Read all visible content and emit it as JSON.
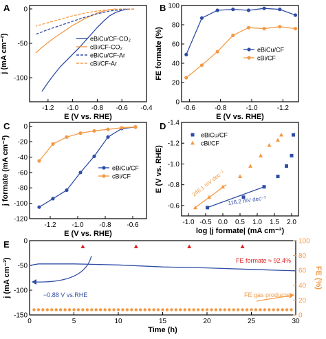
{
  "colors": {
    "ebicu": "#2F4DA5",
    "cbi": "#F39A45",
    "fe_marker": "#E02020",
    "axis": "#000000"
  },
  "chart_data": [
    {
      "panel": "A",
      "type": "line",
      "xlabel": "E (V vs. RHE)",
      "ylabel": "j (mA cm⁻²)",
      "xlim": [
        -1.35,
        -0.4
      ],
      "ylim": [
        -135,
        5
      ],
      "x_reversed": true,
      "xticks": [
        "-1.2",
        "-1.0",
        "-0.8",
        "-0.6",
        "-0.4"
      ],
      "yticks": [
        "0",
        "-50",
        "-100"
      ],
      "legend_position": "right",
      "series": [
        {
          "name": "eBiCu/CF-CO₂",
          "style": "solid",
          "color": "#2F4DA5",
          "x": [
            -0.55,
            -0.6,
            -0.65,
            -0.7,
            -0.75,
            -0.8,
            -0.85,
            -0.9,
            -0.95,
            -1.0,
            -1.05,
            -1.1,
            -1.15,
            -1.2,
            -1.25
          ],
          "y": [
            0,
            -2,
            -5,
            -10,
            -18,
            -27,
            -37,
            -47,
            -57,
            -66,
            -75,
            -84,
            -95,
            -107,
            -120
          ]
        },
        {
          "name": "cBi/CF-CO₂",
          "style": "solid",
          "color": "#F39A45",
          "x": [
            -0.65,
            -0.7,
            -0.75,
            -0.8,
            -0.85,
            -0.9,
            -0.95,
            -1.0,
            -1.05,
            -1.1,
            -1.15,
            -1.2,
            -1.25,
            -1.3
          ],
          "y": [
            0,
            -1,
            -3,
            -6,
            -10,
            -14,
            -19,
            -24,
            -30,
            -36,
            -42,
            -49,
            -56,
            -64
          ]
        },
        {
          "name": "eBiCu/CF-Ar",
          "style": "dashed",
          "color": "#2F4DA5",
          "x": [
            -0.5,
            -0.6,
            -0.7,
            -0.8,
            -0.9,
            -1.0,
            -1.1,
            -1.2,
            -1.3
          ],
          "y": [
            0,
            -1,
            -3,
            -7,
            -12,
            -18,
            -24,
            -30,
            -37
          ]
        },
        {
          "name": "cBi/CF-Ar",
          "style": "dashed",
          "color": "#F39A45",
          "x": [
            -0.5,
            -0.6,
            -0.7,
            -0.8,
            -0.9,
            -1.0,
            -1.1,
            -1.2,
            -1.3
          ],
          "y": [
            0,
            0,
            -1,
            -3,
            -6,
            -10,
            -15,
            -20,
            -25
          ]
        }
      ]
    },
    {
      "panel": "B",
      "type": "line",
      "xlabel": "E (V vs. RHE)",
      "ylabel": "FE formate (%)",
      "xlim": [
        -0.55,
        -1.3
      ],
      "ylim": [
        0,
        100
      ],
      "xticks": [
        "-0.6",
        "-0.8",
        "-1.0",
        "-1.2"
      ],
      "yticks": [
        "0",
        "20",
        "40",
        "60",
        "80",
        "100"
      ],
      "legend_position": "center-right",
      "series": [
        {
          "name": "eBiCu/CF",
          "marker": "circle",
          "color": "#2F4DA5",
          "x": [
            -0.58,
            -0.68,
            -0.78,
            -0.88,
            -0.98,
            -1.08,
            -1.18,
            -1.28
          ],
          "y": [
            49,
            87,
            95,
            96,
            95,
            97,
            96,
            90
          ]
        },
        {
          "name": "cBi/CF",
          "marker": "circle",
          "color": "#F39A45",
          "x": [
            -0.58,
            -0.68,
            -0.78,
            -0.88,
            -0.98,
            -1.08,
            -1.18,
            -1.28
          ],
          "y": [
            25,
            38,
            52,
            69,
            77,
            76,
            78,
            76
          ]
        }
      ]
    },
    {
      "panel": "C",
      "type": "line",
      "xlabel": "E (V vs. RHE)",
      "ylabel": "j formate (mA cm⁻²)",
      "xlim": [
        -1.35,
        -0.5
      ],
      "ylim": [
        -120,
        5
      ],
      "xticks": [
        "-1.2",
        "-1.0",
        "-0.8",
        "-0.6"
      ],
      "yticks": [
        "0",
        "-20",
        "-40",
        "-60",
        "-80",
        "-100",
        "-120"
      ],
      "legend_position": "bottom-right",
      "series": [
        {
          "name": "eBiCu/CF",
          "marker": "circle",
          "color": "#2F4DA5",
          "x": [
            -1.28,
            -1.18,
            -1.08,
            -0.98,
            -0.88,
            -0.78,
            -0.68,
            -0.58
          ],
          "y": [
            -105,
            -94,
            -83,
            -60,
            -39,
            -14,
            -3,
            -1
          ]
        },
        {
          "name": "cBi/CF",
          "marker": "circle",
          "color": "#F39A45",
          "x": [
            -1.28,
            -1.18,
            -1.08,
            -0.98,
            -0.88,
            -0.78,
            -0.68,
            -0.58
          ],
          "y": [
            -45,
            -23,
            -14,
            -9,
            -6,
            -4,
            -2,
            -1
          ]
        }
      ]
    },
    {
      "panel": "D",
      "type": "scatter",
      "xlabel": "log |j formate| (mA cm⁻²)",
      "ylabel": "E (V vs. RHE)",
      "xlim": [
        -1.2,
        2.2
      ],
      "ylim": [
        -0.5,
        -1.4
      ],
      "xticks": [
        "-1.0",
        "-0.5",
        "0.0",
        "0.5",
        "1.0",
        "1.5",
        "2.0"
      ],
      "yticks": [
        "-1.4",
        "-1.2",
        "-1.0",
        "-0.8",
        "-0.6"
      ],
      "legend_position": "top-left",
      "annotations": [
        "248.1 mV dec⁻¹",
        "116.2 mV dec⁻¹"
      ],
      "series": [
        {
          "name": "eBiCu/CF",
          "marker": "square",
          "color": "#2F4DA5",
          "x": [
            -0.45,
            0.6,
            1.2,
            1.6,
            1.85,
            2.0,
            2.05
          ],
          "y": [
            -0.58,
            -0.68,
            -0.78,
            -0.88,
            -0.98,
            -1.08,
            -1.28
          ]
        },
        {
          "name": "cBi/CF",
          "marker": "triangle",
          "color": "#F39A45",
          "x": [
            -0.8,
            -0.4,
            0.0,
            0.5,
            0.8,
            1.1,
            1.35,
            1.6,
            1.7
          ],
          "y": [
            -0.58,
            -0.68,
            -0.78,
            -0.88,
            -0.98,
            -1.08,
            -1.18,
            -1.23,
            -1.28
          ]
        }
      ],
      "fit_lines": [
        {
          "color": "#F39A45",
          "x": [
            -0.8,
            0.1
          ],
          "y": [
            -0.58,
            -0.8
          ]
        },
        {
          "color": "#2F4DA5",
          "x": [
            -0.45,
            1.2
          ],
          "y": [
            -0.58,
            -0.78
          ]
        }
      ]
    },
    {
      "panel": "E",
      "type": "line",
      "xlabel": "Time (h)",
      "ylabel": "j (mA cm⁻²)",
      "y2label": "FE (%)",
      "xlim": [
        0,
        30
      ],
      "ylim": [
        -150,
        0
      ],
      "y2lim": [
        0,
        100
      ],
      "xticks": [
        "0",
        "5",
        "10",
        "15",
        "20",
        "25",
        "30"
      ],
      "yticks": [
        "0",
        "-50",
        "-100",
        "-150"
      ],
      "y2ticks": [
        "0",
        "20",
        "40",
        "60",
        "80",
        "100"
      ],
      "annotations": [
        "FE formate ≈ 92.4%",
        "FE gas products",
        "−0.88 V vs.RHE"
      ],
      "series": [
        {
          "name": "current density",
          "color": "#2F4DA5",
          "x": [
            0,
            1,
            5,
            10,
            15,
            20,
            25,
            30
          ],
          "y": [
            -50,
            -47,
            -47,
            -49,
            -53,
            -55,
            -58,
            -61
          ]
        },
        {
          "name": "FE formate",
          "marker": "triangle",
          "color": "#E02020",
          "x": [
            6,
            12,
            18,
            24
          ],
          "y": [
            92,
            92,
            92,
            92
          ]
        },
        {
          "name": "FE gas products",
          "marker": "circle",
          "color": "#F39A45",
          "x": [
            0.5,
            1,
            1.5,
            2,
            2.5,
            3,
            3.5,
            4,
            4.5,
            5,
            5.5,
            6,
            6.5,
            7,
            7.5,
            8,
            8.5,
            9,
            9.5,
            10,
            10.5,
            11,
            11.5,
            12,
            12.5,
            13,
            13.5,
            14,
            14.5,
            15,
            15.5,
            16,
            16.5,
            17,
            17.5,
            18,
            18.5,
            19,
            19.5,
            20,
            20.5,
            21,
            21.5,
            22,
            22.5,
            23,
            23.5,
            24,
            24.5,
            25,
            25.5,
            26,
            26.5,
            27,
            27.5,
            28,
            28.5,
            29,
            29.5
          ],
          "y": [
            7,
            7,
            7,
            7,
            7,
            7,
            7,
            7,
            7,
            7,
            7,
            7,
            7,
            7,
            7,
            7,
            7,
            7,
            7,
            7,
            7,
            7,
            7,
            7,
            7,
            7,
            7,
            7,
            7,
            7,
            7,
            7,
            7,
            7,
            7,
            7,
            7,
            7,
            7,
            7,
            7,
            7,
            7,
            7,
            7,
            7,
            7,
            7,
            7,
            7,
            7,
            7,
            7,
            7,
            7,
            7,
            7,
            7,
            7
          ]
        }
      ]
    }
  ]
}
